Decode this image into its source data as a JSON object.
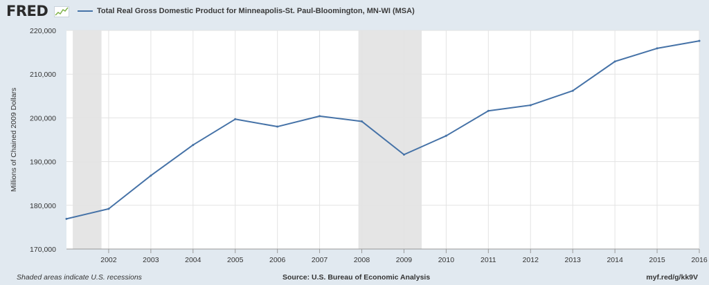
{
  "logo": {
    "text": "FRED"
  },
  "chart_data": {
    "type": "line",
    "series": [
      {
        "name": "Total Real Gross Domestic Product for Minneapolis-St. Paul-Bloomington, MN-WI (MSA)",
        "color": "#4572a7",
        "x": [
          2001,
          2002,
          2003,
          2004,
          2005,
          2006,
          2007,
          2008,
          2009,
          2010,
          2011,
          2012,
          2013,
          2014,
          2015,
          2016
        ],
        "values": [
          176900,
          179200,
          186800,
          193800,
          199700,
          198000,
          200400,
          199200,
          191600,
          195900,
          201600,
          202900,
          206200,
          212900,
          215900,
          217600
        ]
      }
    ],
    "ylabel": "Millions of Chained 2009 Dollars",
    "ylim": [
      170000,
      220000
    ],
    "yticks": [
      170000,
      180000,
      190000,
      200000,
      210000,
      220000
    ],
    "ytick_labels": [
      "170,000",
      "180,000",
      "190,000",
      "200,000",
      "210,000",
      "220,000"
    ],
    "xlim": [
      2001,
      2016
    ],
    "xticks": [
      2002,
      2003,
      2004,
      2005,
      2006,
      2007,
      2008,
      2009,
      2010,
      2011,
      2012,
      2013,
      2014,
      2015,
      2016
    ],
    "xtick_labels": [
      "2002",
      "2003",
      "2004",
      "2005",
      "2006",
      "2007",
      "2008",
      "2009",
      "2010",
      "2011",
      "2012",
      "2013",
      "2014",
      "2015",
      "2016"
    ],
    "recessions": [
      [
        2001.15,
        2001.83
      ],
      [
        2007.92,
        2009.42
      ]
    ],
    "recession_color": "#e5e5e5",
    "grid": true,
    "legend_position": "top"
  },
  "footer": {
    "note": "Shaded areas indicate U.S. recessions",
    "source": "Source: U.S. Bureau of Economic Analysis",
    "link": "myf.red/g/kk9V"
  }
}
